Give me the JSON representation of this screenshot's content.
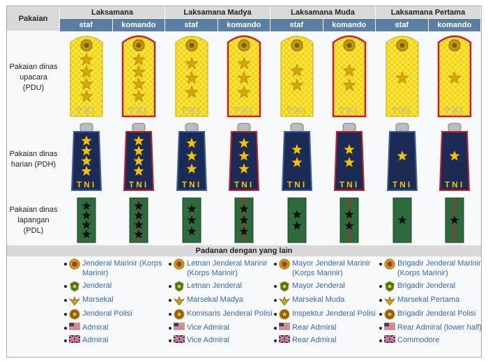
{
  "header": {
    "pakaian": "Pakaian",
    "ranks": [
      "Laksamana",
      "Laksamana Madya",
      "Laksamana Muda",
      "Laksamana Pertama"
    ],
    "sub": [
      "staf",
      "komando",
      "staf",
      "komando",
      "staf",
      "komando",
      "staf",
      "komando"
    ]
  },
  "rows": [
    {
      "label": "Pakaian dinas upacara (PDU)",
      "stars": [
        4,
        4,
        3,
        3,
        2,
        2,
        1,
        1
      ],
      "type": "pdu"
    },
    {
      "label": "Pakaian dinas harian (PDH)",
      "stars": [
        4,
        4,
        3,
        3,
        2,
        2,
        1,
        1
      ],
      "type": "pdh"
    },
    {
      "label": "Pakaian dinas lapangan (PDL)",
      "stars": [
        4,
        4,
        3,
        3,
        2,
        2,
        1,
        1
      ],
      "type": "pdl"
    }
  ],
  "insignia_text": "TNI",
  "padanan_title": "Padanan dengan yang lain",
  "equivalents": [
    [
      {
        "icon": "marinir-emblem-icon",
        "text": "Jenderal Marinir (Korps Marinir)"
      },
      {
        "icon": "army-emblem-icon",
        "text": "Jenderal"
      },
      {
        "icon": "airforce-emblem-icon",
        "text": "Marsekal"
      },
      {
        "icon": "police-emblem-icon",
        "text": "Jenderal Polisi"
      },
      {
        "icon": "us-flag-icon",
        "text": "Admiral"
      },
      {
        "icon": "uk-flag-icon",
        "text": "Admiral"
      }
    ],
    [
      {
        "icon": "marinir-emblem-icon",
        "text": "Letnan Jenderal Marinir (Korps Marinir)"
      },
      {
        "icon": "army-emblem-icon",
        "text": "Letnan Jenderal"
      },
      {
        "icon": "airforce-emblem-icon",
        "text": "Marsekal Madya"
      },
      {
        "icon": "police-emblem-icon",
        "text": "Komisaris Jenderal Polisi"
      },
      {
        "icon": "us-flag-icon",
        "text": "Vice Admiral"
      },
      {
        "icon": "uk-flag-icon",
        "text": "Vice Admiral"
      }
    ],
    [
      {
        "icon": "marinir-emblem-icon",
        "text": "Mayor Jenderal Marinir (Korps Marinir)"
      },
      {
        "icon": "army-emblem-icon",
        "text": "Mayor Jenderal"
      },
      {
        "icon": "airforce-emblem-icon",
        "text": "Marsekal Muda"
      },
      {
        "icon": "police-emblem-icon",
        "text": "Inspektur Jenderal Polisi"
      },
      {
        "icon": "us-flag-icon",
        "text": "Rear Admiral"
      },
      {
        "icon": "uk-flag-icon",
        "text": "Rear Admiral"
      }
    ],
    [
      {
        "icon": "marinir-emblem-icon",
        "text": "Brigadir Jenderal Marinir (Korps Marinir)"
      },
      {
        "icon": "army-emblem-icon",
        "text": "Brigadir Jenderal"
      },
      {
        "icon": "airforce-emblem-icon",
        "text": "Marsekal Pertama"
      },
      {
        "icon": "police-emblem-icon",
        "text": "Brigadir Jenderal Polisi"
      },
      {
        "icon": "us-flag-icon",
        "text": "Rear Admiral (lower half)"
      },
      {
        "icon": "uk-flag-icon",
        "text": "Commodore"
      }
    ]
  ],
  "colors": {
    "header_gray": "#d9d9d9",
    "header_blue": "#5b7ea4",
    "pdu_gold": "#f5d400",
    "pdh_navy": "#1c2b55",
    "pdl_green": "#2e6b3c",
    "komando_red": "#c8202a",
    "link": "#3366cc"
  }
}
